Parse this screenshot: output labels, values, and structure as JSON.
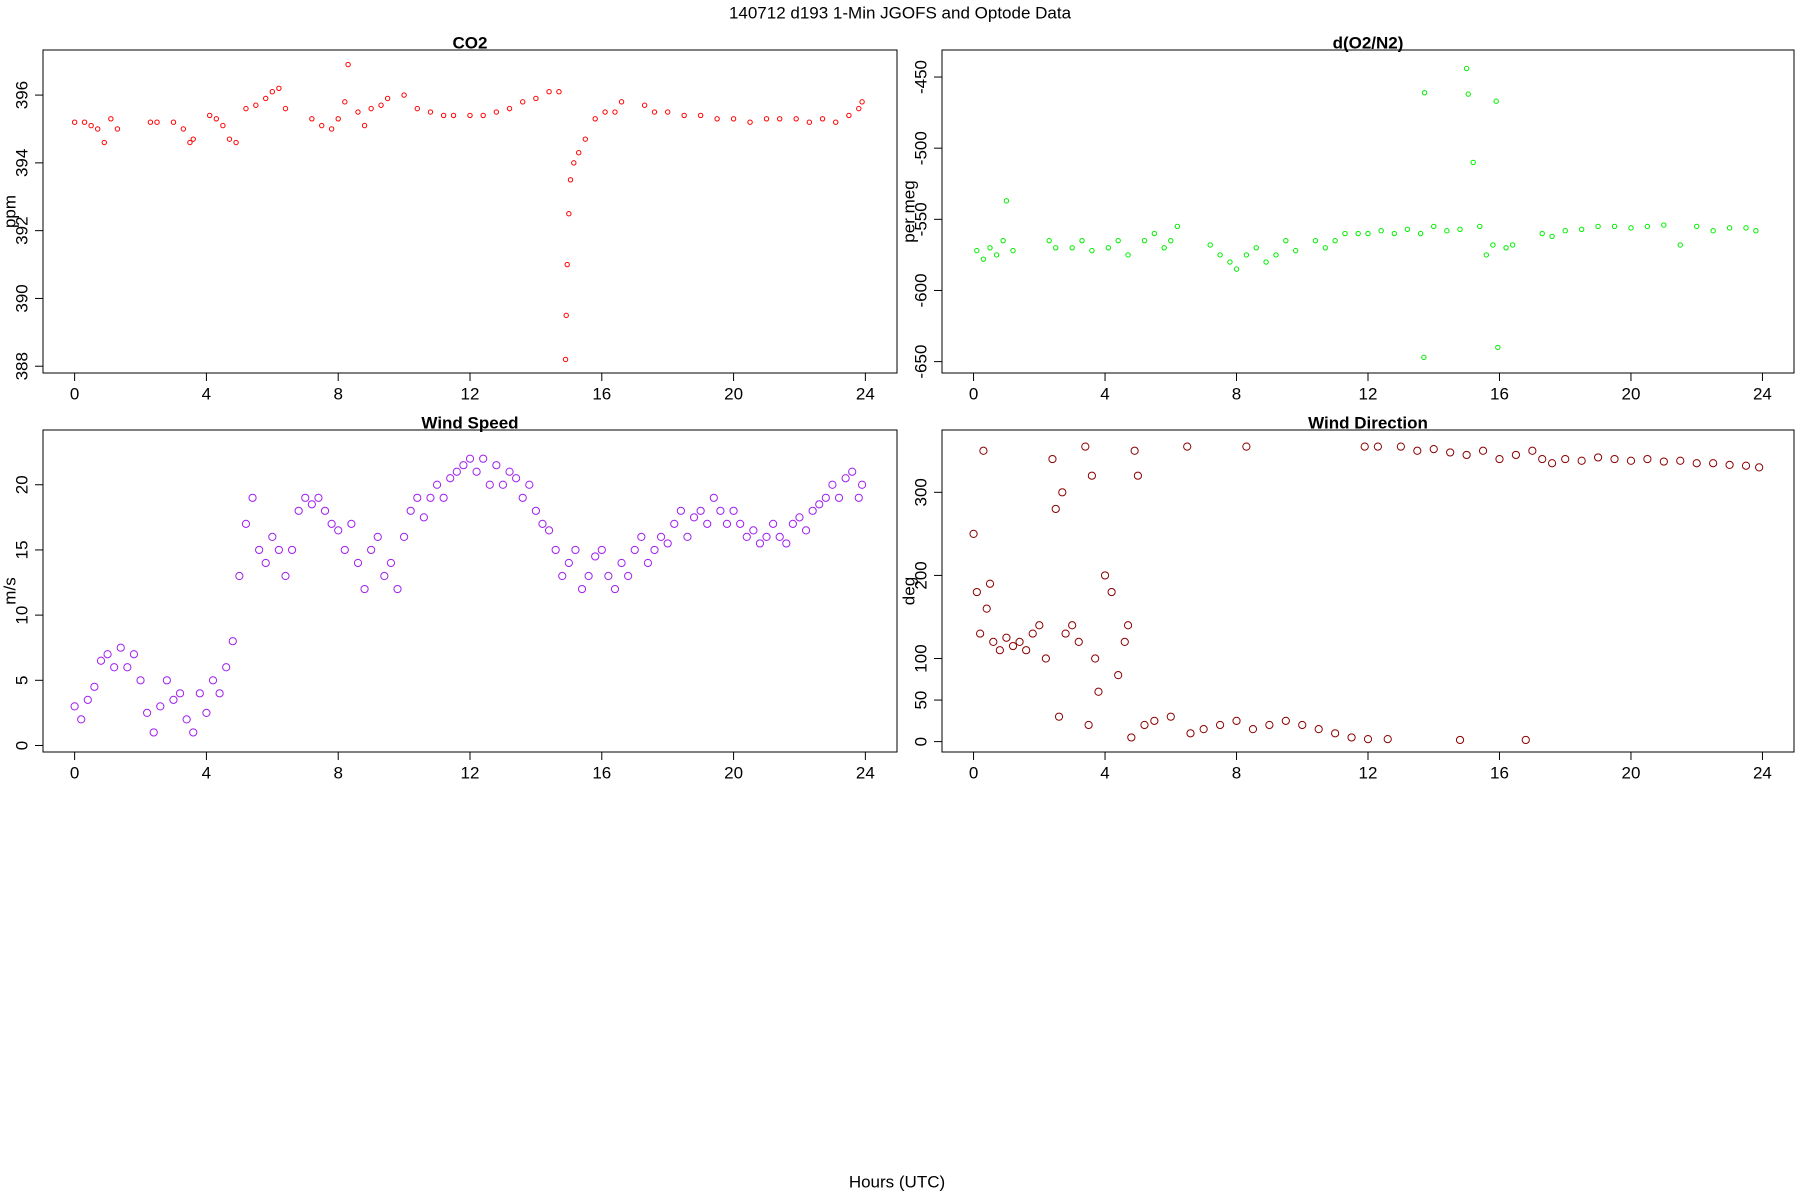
{
  "title": "140712   d193   1-Min  JGOFS and Optode Data",
  "xlabel": "Hours (UTC)",
  "chart_data": [
    {
      "type": "scatter",
      "title": "CO2",
      "ylabel": "ppm",
      "color": "#ff0000",
      "marker_size": 2.2,
      "xlim": [
        -0.96,
        24.96
      ],
      "xticks": [
        0,
        4,
        8,
        12,
        16,
        20,
        24
      ],
      "ylim": [
        387.8,
        397.33
      ],
      "yticks": [
        388,
        390,
        392,
        394,
        396
      ],
      "x": [
        0.0,
        0.3,
        0.5,
        0.7,
        0.9,
        1.1,
        1.3,
        2.3,
        2.5,
        3.0,
        3.3,
        3.5,
        3.6,
        4.1,
        4.3,
        4.5,
        4.7,
        4.9,
        5.2,
        5.5,
        5.8,
        6.0,
        6.2,
        6.4,
        7.2,
        7.5,
        7.8,
        8.0,
        8.2,
        8.3,
        8.6,
        8.8,
        9.0,
        9.3,
        9.5,
        10.0,
        10.4,
        10.8,
        11.2,
        11.5,
        12.0,
        12.4,
        12.8,
        13.2,
        13.6,
        14.0,
        14.4,
        14.7,
        14.9,
        14.92,
        14.95,
        15.0,
        15.05,
        15.15,
        15.3,
        15.5,
        15.8,
        16.1,
        16.4,
        16.6,
        17.3,
        17.6,
        18.0,
        18.5,
        19.0,
        19.5,
        20.0,
        20.5,
        21.0,
        21.4,
        21.9,
        22.3,
        22.7,
        23.1,
        23.5,
        23.8,
        23.9
      ],
      "values": [
        395.2,
        395.2,
        395.1,
        395.0,
        394.6,
        395.3,
        395.0,
        395.2,
        395.2,
        395.2,
        395.0,
        394.6,
        394.7,
        395.4,
        395.3,
        395.1,
        394.7,
        394.6,
        395.6,
        395.7,
        395.9,
        396.1,
        396.2,
        395.6,
        395.3,
        395.1,
        395.0,
        395.3,
        395.8,
        396.9,
        395.5,
        395.1,
        395.6,
        395.7,
        395.9,
        396.0,
        395.6,
        395.5,
        395.4,
        395.4,
        395.4,
        395.4,
        395.5,
        395.6,
        395.8,
        395.9,
        396.1,
        396.1,
        388.2,
        389.5,
        391.0,
        392.5,
        393.5,
        394.0,
        394.3,
        394.7,
        395.3,
        395.5,
        395.5,
        395.8,
        395.7,
        395.5,
        395.5,
        395.4,
        395.4,
        395.3,
        395.3,
        395.2,
        395.3,
        395.3,
        395.3,
        395.2,
        395.3,
        395.2,
        395.4,
        395.6,
        395.8
      ]
    },
    {
      "type": "scatter",
      "title": "d(O2/N2)",
      "ylabel": "per meg",
      "color": "#00ee00",
      "marker_size": 2.2,
      "xlim": [
        -0.96,
        24.96
      ],
      "xticks": [
        0,
        4,
        8,
        12,
        16,
        20,
        24
      ],
      "ylim": [
        -658,
        -431
      ],
      "yticks": [
        -650,
        -600,
        -550,
        -500,
        -450
      ],
      "x": [
        0.1,
        0.3,
        0.5,
        0.7,
        0.9,
        1.0,
        1.2,
        2.3,
        2.5,
        3.0,
        3.3,
        3.6,
        4.1,
        4.4,
        4.7,
        5.2,
        5.5,
        5.8,
        6.0,
        6.2,
        7.2,
        7.5,
        7.8,
        8.0,
        8.3,
        8.6,
        8.9,
        9.2,
        9.5,
        9.8,
        10.4,
        10.7,
        11.0,
        11.3,
        11.7,
        12.0,
        12.4,
        12.8,
        13.2,
        13.6,
        13.7,
        13.72,
        14.0,
        14.4,
        14.8,
        15.0,
        15.05,
        15.2,
        15.4,
        15.6,
        15.8,
        15.9,
        15.95,
        16.2,
        16.4,
        17.3,
        17.6,
        18.0,
        18.5,
        19.0,
        19.5,
        20.0,
        20.5,
        21.0,
        21.5,
        22.0,
        22.5,
        23.0,
        23.5,
        23.8
      ],
      "values": [
        -572,
        -578,
        -570,
        -575,
        -565,
        -537,
        -572,
        -565,
        -570,
        -570,
        -565,
        -572,
        -570,
        -565,
        -575,
        -565,
        -560,
        -570,
        -565,
        -555,
        -568,
        -575,
        -580,
        -585,
        -575,
        -570,
        -580,
        -575,
        -565,
        -572,
        -565,
        -570,
        -565,
        -560,
        -560,
        -560,
        -558,
        -560,
        -557,
        -560,
        -647,
        -461,
        -555,
        -558,
        -557,
        -444,
        -462,
        -510,
        -555,
        -575,
        -568,
        -467,
        -640,
        -570,
        -568,
        -560,
        -562,
        -558,
        -557,
        -555,
        -555,
        -556,
        -555,
        -554,
        -568,
        -555,
        -558,
        -556,
        -556,
        -558
      ]
    },
    {
      "type": "scatter",
      "title": "Wind Speed",
      "ylabel": "m/s",
      "color": "#a020f0",
      "marker_size": 3.6,
      "xlim": [
        -0.96,
        24.96
      ],
      "xticks": [
        0,
        4,
        8,
        12,
        16,
        20,
        24
      ],
      "ylim": [
        -0.5,
        24.2
      ],
      "yticks": [
        0,
        5,
        10,
        15,
        20
      ],
      "x": [
        0.0,
        0.2,
        0.4,
        0.6,
        0.8,
        1.0,
        1.2,
        1.4,
        1.6,
        1.8,
        2.0,
        2.2,
        2.4,
        2.6,
        2.8,
        3.0,
        3.2,
        3.4,
        3.6,
        3.8,
        4.0,
        4.2,
        4.4,
        4.6,
        4.8,
        5.0,
        5.2,
        5.4,
        5.6,
        5.8,
        6.0,
        6.2,
        6.4,
        6.6,
        6.8,
        7.0,
        7.2,
        7.4,
        7.6,
        7.8,
        8.0,
        8.2,
        8.4,
        8.6,
        8.8,
        9.0,
        9.2,
        9.4,
        9.6,
        9.8,
        10.0,
        10.2,
        10.4,
        10.6,
        10.8,
        11.0,
        11.2,
        11.4,
        11.6,
        11.8,
        12.0,
        12.2,
        12.4,
        12.6,
        12.8,
        13.0,
        13.2,
        13.4,
        13.6,
        13.8,
        14.0,
        14.2,
        14.4,
        14.6,
        14.8,
        15.0,
        15.2,
        15.4,
        15.6,
        15.8,
        16.0,
        16.2,
        16.4,
        16.6,
        16.8,
        17.0,
        17.2,
        17.4,
        17.6,
        17.8,
        18.0,
        18.2,
        18.4,
        18.6,
        18.8,
        19.0,
        19.2,
        19.4,
        19.6,
        19.8,
        20.0,
        20.2,
        20.4,
        20.6,
        20.8,
        21.0,
        21.2,
        21.4,
        21.6,
        21.8,
        22.0,
        22.2,
        22.4,
        22.6,
        22.8,
        23.0,
        23.2,
        23.4,
        23.6,
        23.8,
        23.9
      ],
      "values": [
        3,
        2,
        3.5,
        4.5,
        6.5,
        7,
        6,
        7.5,
        6,
        7,
        5,
        2.5,
        1,
        3,
        5,
        3.5,
        4,
        2,
        1,
        4,
        2.5,
        5,
        4,
        6,
        8,
        13,
        17,
        19,
        15,
        14,
        16,
        15,
        13,
        15,
        18,
        19,
        18.5,
        19,
        18,
        17,
        16.5,
        15,
        17,
        14,
        12,
        15,
        16,
        13,
        14,
        12,
        16,
        18,
        19,
        17.5,
        19,
        20,
        19,
        20.5,
        21,
        21.5,
        22,
        21,
        22,
        20,
        21.5,
        20,
        21,
        20.5,
        19,
        20,
        18,
        17,
        16.5,
        15,
        13,
        14,
        15,
        12,
        13,
        14.5,
        15,
        13,
        12,
        14,
        13,
        15,
        16,
        14,
        15,
        16,
        15.5,
        17,
        18,
        16,
        17.5,
        18,
        17,
        19,
        18,
        17,
        18,
        17,
        16,
        16.5,
        15.5,
        16,
        17,
        16,
        15.5,
        17,
        17.5,
        16.5,
        18,
        18.5,
        19,
        20,
        19,
        20.5,
        21,
        19,
        20
      ]
    },
    {
      "type": "scatter",
      "title": "Wind Direction",
      "ylabel": "deg",
      "color": "#8b0000",
      "marker_size": 3.6,
      "xlim": [
        -0.96,
        24.96
      ],
      "xticks": [
        0,
        4,
        8,
        12,
        16,
        20,
        24
      ],
      "ylim": [
        -12.5,
        375
      ],
      "yticks": [
        0,
        50,
        100,
        200,
        300
      ],
      "x": [
        0.0,
        0.1,
        0.2,
        0.3,
        0.4,
        0.5,
        0.6,
        0.8,
        1.0,
        1.2,
        1.4,
        1.6,
        1.8,
        2.0,
        2.2,
        2.4,
        2.5,
        2.6,
        2.7,
        2.8,
        3.0,
        3.2,
        3.4,
        3.5,
        3.6,
        3.7,
        3.8,
        4.0,
        4.2,
        4.4,
        4.6,
        4.7,
        4.8,
        4.9,
        5.0,
        5.2,
        5.5,
        6.0,
        6.5,
        6.6,
        7.0,
        7.5,
        8.0,
        8.3,
        8.5,
        9.0,
        9.5,
        10.0,
        10.5,
        11.0,
        11.5,
        11.9,
        12.0,
        12.3,
        12.6,
        13.0,
        13.5,
        14.0,
        14.5,
        14.8,
        15.0,
        15.5,
        16.0,
        16.5,
        16.8,
        17.0,
        17.3,
        17.6,
        18.0,
        18.5,
        19.0,
        19.5,
        20.0,
        20.5,
        21.0,
        21.5,
        22.0,
        22.5,
        23.0,
        23.5,
        23.9
      ],
      "values": [
        250,
        180,
        130,
        350,
        160,
        190,
        120,
        110,
        125,
        115,
        120,
        110,
        130,
        140,
        100,
        340,
        280,
        30,
        300,
        130,
        140,
        120,
        355,
        20,
        320,
        100,
        60,
        200,
        180,
        80,
        120,
        140,
        5,
        350,
        320,
        20,
        25,
        30,
        355,
        10,
        15,
        20,
        25,
        355,
        15,
        20,
        25,
        20,
        15,
        10,
        5,
        355,
        3,
        355,
        3,
        355,
        350,
        352,
        348,
        2,
        345,
        350,
        340,
        345,
        2,
        350,
        340,
        335,
        340,
        338,
        342,
        340,
        338,
        340,
        337,
        338,
        335,
        335,
        333,
        332,
        330
      ]
    }
  ]
}
